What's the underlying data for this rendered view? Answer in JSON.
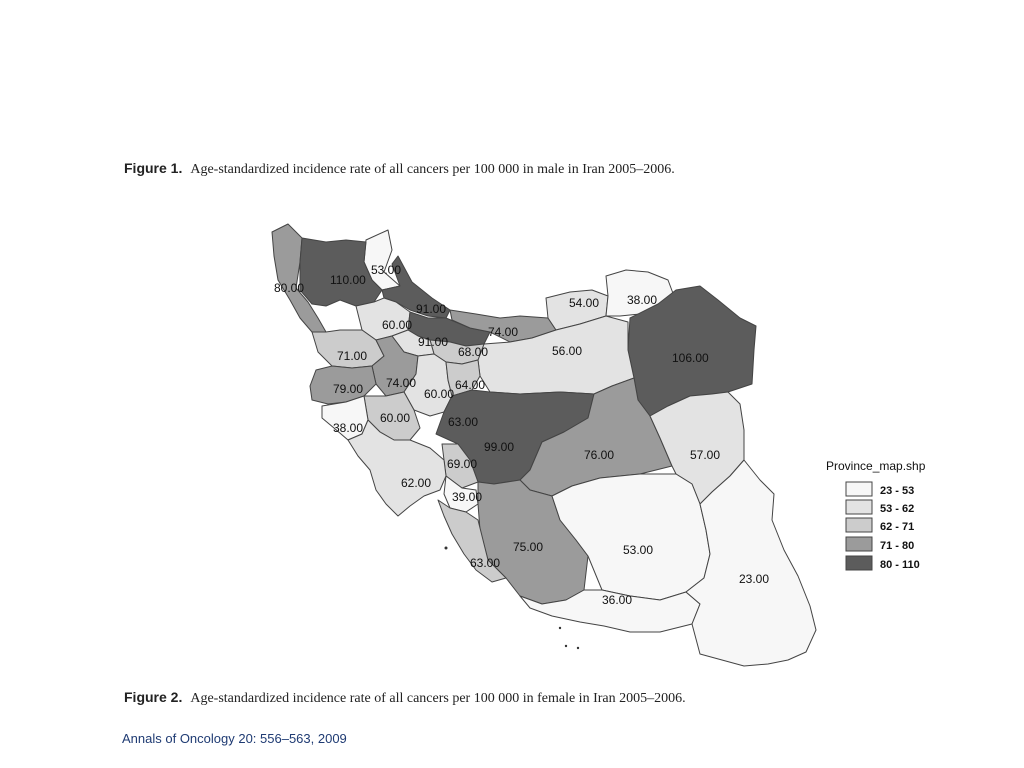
{
  "captions": {
    "figure1": {
      "number": "Figure 1.",
      "text": "Age-standardized incidence rate of all cancers per 100 000 in male in Iran 2005–2006."
    },
    "figure2": {
      "number": "Figure 2.",
      "text": "Age-standardized incidence rate of all cancers per 100 000 in female in Iran 2005–2006."
    }
  },
  "citation": "Annals of Oncology 20: 556–563, 2009",
  "legend": {
    "title": "Province_map.shp",
    "classes": [
      {
        "label": "23 - 53",
        "color": "#f7f7f7"
      },
      {
        "label": "53 - 62",
        "color": "#e3e3e3"
      },
      {
        "label": "62 - 71",
        "color": "#cccccc"
      },
      {
        "label": "71 - 80",
        "color": "#9b9b9b"
      },
      {
        "label": "80 - 110",
        "color": "#5c5c5c"
      }
    ]
  },
  "provinces": [
    {
      "id": "ardabil",
      "value": "53.00",
      "class": 0
    },
    {
      "id": "west-azerbaijan",
      "value": "80.00",
      "class": 3
    },
    {
      "id": "east-azerbaijan",
      "value": "110.00",
      "class": 4
    },
    {
      "id": "gilan",
      "value": "91.00",
      "class": 4
    },
    {
      "id": "zanjan",
      "value": "60.00",
      "class": 1
    },
    {
      "id": "mazandaran",
      "value": "91.00",
      "class": 4
    },
    {
      "id": "golestan",
      "value": "74.00",
      "class": 3
    },
    {
      "id": "north-khorasan",
      "value": "54.00",
      "class": 1
    },
    {
      "id": "khorasan-razavi-north",
      "value": "38.00",
      "class": 0
    },
    {
      "id": "khorasan-razavi",
      "value": "106.00",
      "class": 4
    },
    {
      "id": "semnan",
      "value": "56.00",
      "class": 1
    },
    {
      "id": "tehran",
      "value": "68.00",
      "class": 2
    },
    {
      "id": "qazvin",
      "value": "60.00",
      "class": 1
    },
    {
      "id": "kordestan",
      "value": "71.00",
      "class": 2
    },
    {
      "id": "hamadan",
      "value": "74.00",
      "class": 3
    },
    {
      "id": "kermanshah",
      "value": "79.00",
      "class": 3
    },
    {
      "id": "markazi",
      "value": "60.00",
      "class": 1
    },
    {
      "id": "qom",
      "value": "64.00",
      "class": 2
    },
    {
      "id": "lorestan",
      "value": "63.00",
      "class": 2
    },
    {
      "id": "ilam",
      "value": "38.00",
      "class": 0
    },
    {
      "id": "isfahan",
      "value": "99.00",
      "class": 4
    },
    {
      "id": "yazd",
      "value": "76.00",
      "class": 3
    },
    {
      "id": "south-khorasan",
      "value": "57.00",
      "class": 1
    },
    {
      "id": "chaharmahal",
      "value": "69.00",
      "class": 2
    },
    {
      "id": "khuzestan",
      "value": "62.00",
      "class": 1
    },
    {
      "id": "kohgiluyeh",
      "value": "39.00",
      "class": 0
    },
    {
      "id": "fars",
      "value": "75.00",
      "class": 3
    },
    {
      "id": "bushehr",
      "value": "63.00",
      "class": 2
    },
    {
      "id": "kerman",
      "value": "53.00",
      "class": 0
    },
    {
      "id": "hormozgan",
      "value": "36.00",
      "class": 0
    },
    {
      "id": "sistan-baluchestan",
      "value": "23.00",
      "class": 0
    }
  ]
}
